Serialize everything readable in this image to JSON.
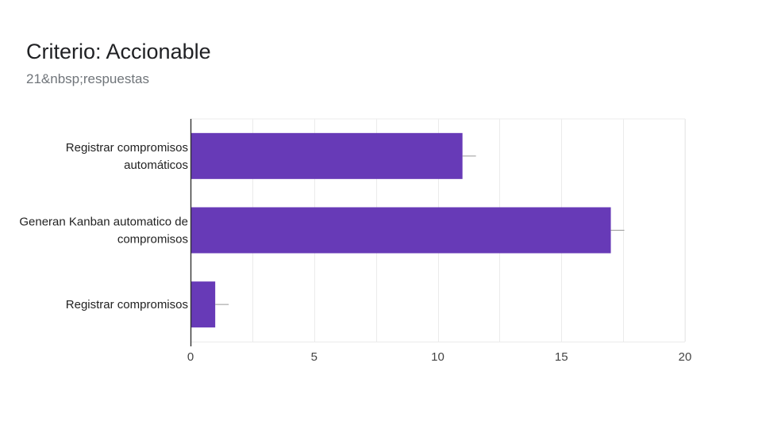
{
  "header": {
    "title": "Criterio: Accionable",
    "subtitle": "21&nbsp;respuestas"
  },
  "colors": {
    "bar": "#673ab7",
    "grid": "#ebebeb",
    "axis": "#333333",
    "error_bar": "#999999"
  },
  "chart_data": {
    "type": "bar",
    "orientation": "horizontal",
    "title": "Criterio: Accionable",
    "subtitle": "21&nbsp;respuestas",
    "categories": [
      [
        "Registrar compromisos",
        "automáticos"
      ],
      [
        "Generan Kanban automatico de",
        "compromisos"
      ],
      [
        "Registrar compromisos"
      ]
    ],
    "values": [
      11,
      17,
      1
    ],
    "xlim": [
      0,
      20
    ],
    "xticks": [
      0,
      5,
      10,
      15,
      20
    ],
    "xlabel": "",
    "ylabel": "",
    "grid": true,
    "legend": "none"
  }
}
